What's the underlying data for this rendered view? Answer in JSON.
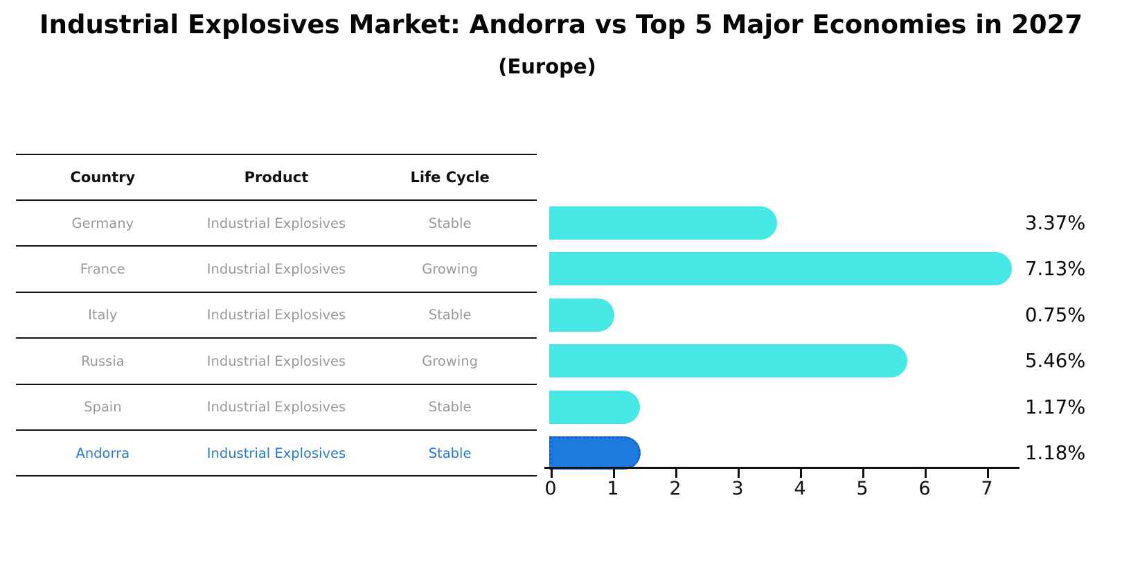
{
  "title": "Industrial Explosives Market: Andorra vs Top 5 Major Economies in 2027",
  "subtitle": "(Europe)",
  "table": {
    "headers": [
      "Country",
      "Product",
      "Life Cycle"
    ],
    "rows": [
      {
        "country": "Germany",
        "product": "Industrial Explosives",
        "life_cycle": "Stable",
        "highlight": false
      },
      {
        "country": "France",
        "product": "Industrial Explosives",
        "life_cycle": "Growing",
        "highlight": false
      },
      {
        "country": "Italy",
        "product": "Industrial Explosives",
        "life_cycle": "Stable",
        "highlight": false
      },
      {
        "country": "Russia",
        "product": "Industrial Explosives",
        "life_cycle": "Growing",
        "highlight": false
      },
      {
        "country": "Spain",
        "product": "Industrial Explosives",
        "life_cycle": "Stable",
        "highlight": false
      },
      {
        "country": "Andorra",
        "product": "Industrial Explosives",
        "life_cycle": "Stable",
        "highlight": true
      }
    ]
  },
  "chart_data": {
    "type": "bar",
    "orientation": "horizontal",
    "title": "Industrial Explosives Market: Andorra vs Top 5 Major Economies in 2027",
    "subtitle": "(Europe)",
    "categories": [
      "Germany",
      "France",
      "Italy",
      "Russia",
      "Spain",
      "Andorra"
    ],
    "values": [
      3.37,
      7.13,
      0.75,
      5.46,
      1.17,
      1.18
    ],
    "value_labels": [
      "3.37%",
      "7.13%",
      "0.75%",
      "5.46%",
      "1.17%",
      "1.18%"
    ],
    "life_cycle": [
      "Stable",
      "Growing",
      "Stable",
      "Growing",
      "Stable",
      "Stable"
    ],
    "unit": "%",
    "xlabel": "",
    "ylabel": "",
    "xlim": [
      0,
      7.5
    ],
    "xticks": [
      0,
      1,
      2,
      3,
      4,
      5,
      6,
      7
    ],
    "grid": false,
    "legend": "none",
    "highlight_index": 5
  },
  "colors": {
    "bar": "#45E8E4",
    "highlight_bar": "#1E7ADE",
    "highlight_border": "#1460C8",
    "row_text": "#999999",
    "highlight_text": "#2979D0",
    "text": "#111111"
  }
}
